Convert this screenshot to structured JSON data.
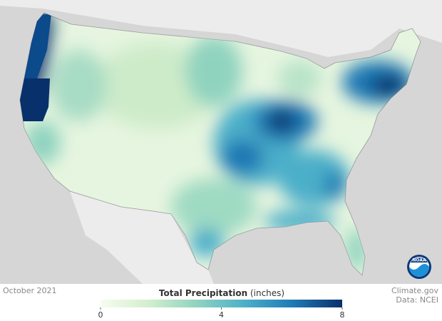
{
  "map": {
    "date": "October 2021",
    "credit": "Climate.gov",
    "source": "Data: NCEI",
    "logo": "NOAA"
  },
  "colorbar": {
    "title": "Total Precipitation",
    "unit": "(inches)",
    "lim": [
      0,
      8
    ],
    "ticks": [
      0,
      4,
      8
    ],
    "colors": [
      "#f7fcf0",
      "#d3eecd",
      "#8fd3bf",
      "#4bafc9",
      "#1f78b4",
      "#08306b"
    ]
  }
}
